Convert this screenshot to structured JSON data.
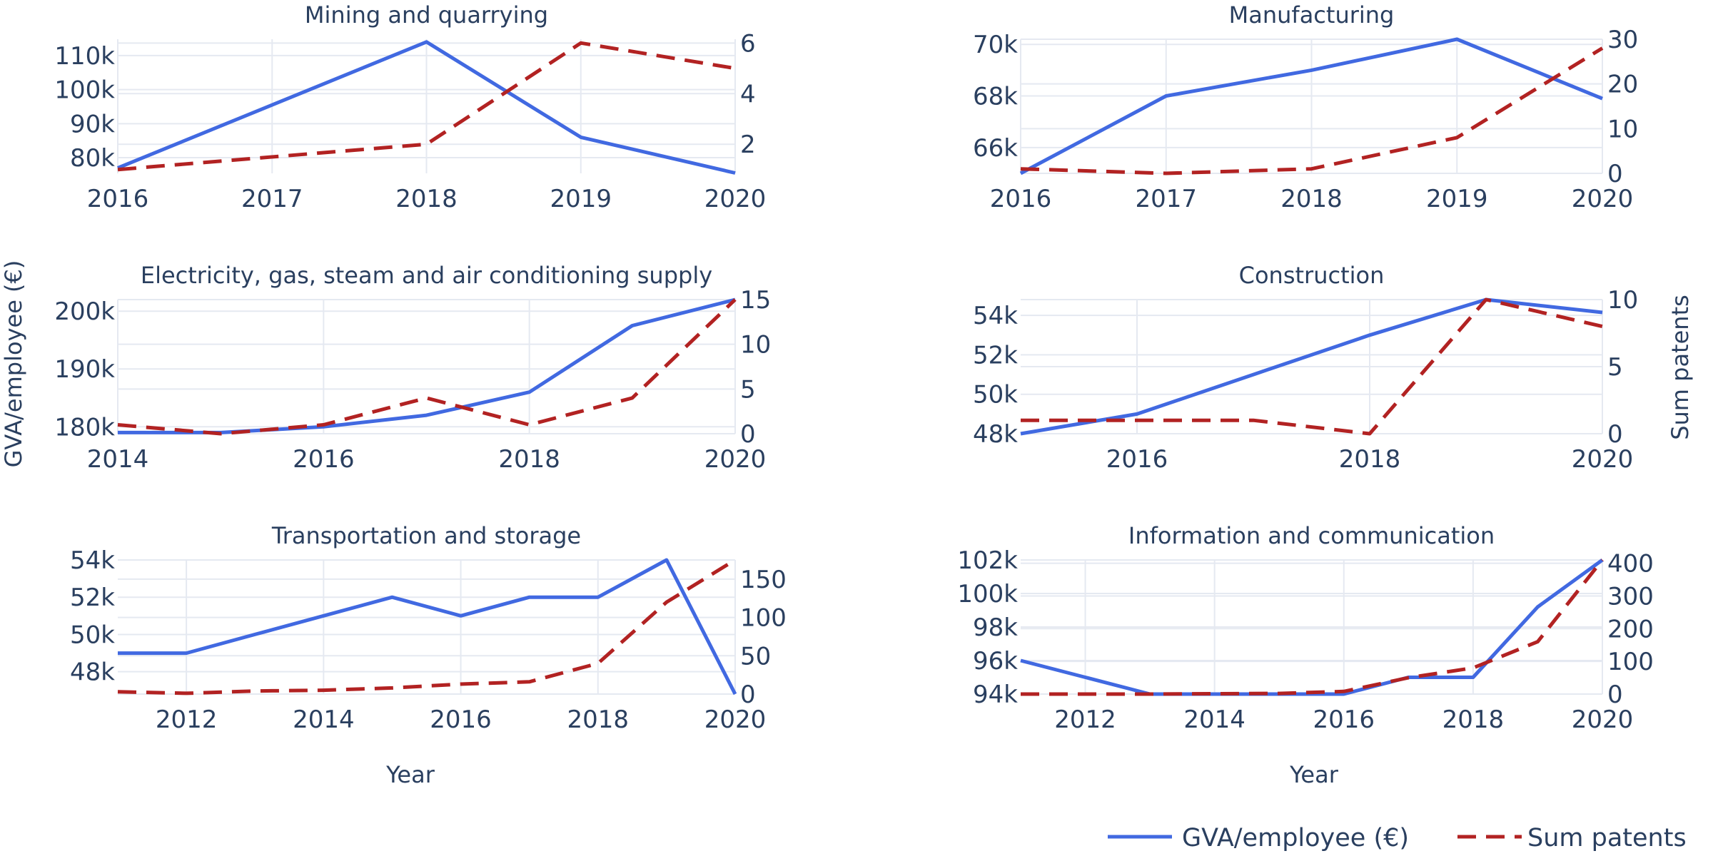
{
  "figure": {
    "left_axis_title": "GVA/employee (€)",
    "right_axis_title": "Sum patents",
    "x_axis_title": "Year",
    "legend": {
      "placement": "bottom-right",
      "items": [
        {
          "label": "GVA/employee (€)",
          "color": "#4169E1",
          "dash": "solid"
        },
        {
          "label": "Sum patents",
          "color": "#B22222",
          "dash": "dash"
        }
      ]
    },
    "colors": {
      "gva": "#4169E1",
      "patents": "#B22222",
      "grid": "#e5e9f1",
      "text": "#2a3f5f"
    }
  },
  "chart_data": [
    {
      "type": "line",
      "title": "Mining and quarrying",
      "xlabel": "",
      "x_range": [
        2016,
        2020
      ],
      "x_ticks": [
        2016,
        2017,
        2018,
        2019,
        2020
      ],
      "x_tick_labels": [
        "2016",
        "2017",
        "2018",
        "2019",
        "2020"
      ],
      "y_left_range": [
        75400,
        114800
      ],
      "y_left_ticks": [
        80000,
        90000,
        100000,
        110000
      ],
      "y_left_tick_labels": [
        "80k",
        "90k",
        "100k",
        "110k"
      ],
      "y_right_range": [
        0.85,
        6.15
      ],
      "y_right_ticks": [
        2,
        4,
        6
      ],
      "y_right_tick_labels": [
        "2",
        "4",
        "6"
      ],
      "series": [
        {
          "name": "GVA/employee (€)",
          "axis": "left",
          "x": [
            2016,
            2018,
            2019,
            2020
          ],
          "values": [
            77000,
            114000,
            86000,
            75500
          ]
        },
        {
          "name": "Sum patents",
          "axis": "right",
          "x": [
            2016,
            2018,
            2019,
            2020
          ],
          "values": [
            1,
            2,
            6,
            5
          ]
        }
      ]
    },
    {
      "type": "line",
      "title": "Manufacturing",
      "xlabel": "",
      "x_range": [
        2016,
        2020
      ],
      "x_ticks": [
        2016,
        2017,
        2018,
        2019,
        2020
      ],
      "x_tick_labels": [
        "2016",
        "2017",
        "2018",
        "2019",
        "2020"
      ],
      "y_left_range": [
        65000,
        70200
      ],
      "y_left_ticks": [
        66000,
        68000,
        70000
      ],
      "y_left_tick_labels": [
        "66k",
        "68k",
        "70k"
      ],
      "y_right_range": [
        0,
        30
      ],
      "y_right_ticks": [
        0,
        10,
        20,
        30
      ],
      "y_right_tick_labels": [
        "0",
        "10",
        "20",
        "30"
      ],
      "series": [
        {
          "name": "GVA/employee (€)",
          "axis": "left",
          "x": [
            2016,
            2017,
            2018,
            2019,
            2020
          ],
          "values": [
            65000,
            68000,
            69000,
            70200,
            67900
          ]
        },
        {
          "name": "Sum patents",
          "axis": "right",
          "x": [
            2016,
            2017,
            2018,
            2019,
            2020
          ],
          "values": [
            1,
            0,
            1,
            8,
            28
          ]
        }
      ]
    },
    {
      "type": "line",
      "title": "Electricity, gas, steam and air conditioning supply",
      "xlabel": "",
      "x_range": [
        2014,
        2020
      ],
      "x_ticks": [
        2014,
        2016,
        2018,
        2020
      ],
      "x_tick_labels": [
        "2014",
        "2016",
        "2018",
        "2020"
      ],
      "y_left_range": [
        178800,
        202000
      ],
      "y_left_ticks": [
        180000,
        190000,
        200000
      ],
      "y_left_tick_labels": [
        "180k",
        "190k",
        "200k"
      ],
      "y_right_range": [
        0,
        15
      ],
      "y_right_ticks": [
        0,
        5,
        10,
        15
      ],
      "y_right_tick_labels": [
        "0",
        "5",
        "10",
        "15"
      ],
      "series": [
        {
          "name": "GVA/employee (€)",
          "axis": "left",
          "x": [
            2014,
            2015,
            2016,
            2017,
            2018,
            2019,
            2020
          ],
          "values": [
            179000,
            179000,
            180000,
            182000,
            186000,
            197500,
            202000
          ]
        },
        {
          "name": "Sum patents",
          "axis": "right",
          "x": [
            2014,
            2015,
            2016,
            2017,
            2018,
            2019,
            2020
          ],
          "values": [
            1,
            0,
            1,
            4,
            1,
            4,
            15
          ]
        }
      ]
    },
    {
      "type": "line",
      "title": "Construction",
      "xlabel": "",
      "x_range": [
        2015,
        2020
      ],
      "x_ticks": [
        2016,
        2018,
        2020
      ],
      "x_tick_labels": [
        "2016",
        "2018",
        "2020"
      ],
      "y_left_range": [
        48000,
        54800
      ],
      "y_left_ticks": [
        48000,
        50000,
        52000,
        54000
      ],
      "y_left_tick_labels": [
        "48k",
        "50k",
        "52k",
        "54k"
      ],
      "y_right_range": [
        0,
        10
      ],
      "y_right_ticks": [
        0,
        5,
        10
      ],
      "y_right_tick_labels": [
        "0",
        "5",
        "10"
      ],
      "series": [
        {
          "name": "GVA/employee (€)",
          "axis": "left",
          "x": [
            2015,
            2016,
            2017,
            2018,
            2019,
            2020
          ],
          "values": [
            48000,
            49000,
            51000,
            53000,
            54800,
            54150
          ]
        },
        {
          "name": "Sum patents",
          "axis": "right",
          "x": [
            2015,
            2016,
            2017,
            2018,
            2019,
            2020
          ],
          "values": [
            1,
            1,
            1,
            0,
            10,
            8
          ]
        }
      ]
    },
    {
      "type": "line",
      "title": "Transportation and storage",
      "xlabel": "Year",
      "x_range": [
        2011,
        2020
      ],
      "x_ticks": [
        2012,
        2014,
        2016,
        2018,
        2020
      ],
      "x_tick_labels": [
        "2012",
        "2014",
        "2016",
        "2018",
        "2020"
      ],
      "y_left_range": [
        46800,
        54000
      ],
      "y_left_ticks": [
        48000,
        50000,
        52000,
        54000
      ],
      "y_left_tick_labels": [
        "48k",
        "50k",
        "52k",
        "54k"
      ],
      "y_right_range": [
        0,
        175
      ],
      "y_right_ticks": [
        0,
        50,
        100,
        150
      ],
      "y_right_tick_labels": [
        "0",
        "50",
        "100",
        "150"
      ],
      "series": [
        {
          "name": "GVA/employee (€)",
          "axis": "left",
          "x": [
            2011,
            2012,
            2013,
            2014,
            2015,
            2016,
            2017,
            2018,
            2019,
            2020
          ],
          "values": [
            49000,
            49000,
            50000,
            51000,
            52000,
            51000,
            52000,
            52000,
            54000,
            46800
          ]
        },
        {
          "name": "Sum patents",
          "axis": "right",
          "x": [
            2011,
            2012,
            2013,
            2014,
            2015,
            2016,
            2017,
            2018,
            2019,
            2020
          ],
          "values": [
            3,
            1,
            4,
            5,
            8,
            13,
            16,
            40,
            120,
            175
          ]
        }
      ]
    },
    {
      "type": "line",
      "title": "Information and communication",
      "xlabel": "Year",
      "x_range": [
        2011,
        2020
      ],
      "x_ticks": [
        2012,
        2014,
        2016,
        2018,
        2020
      ],
      "x_tick_labels": [
        "2012",
        "2014",
        "2016",
        "2018",
        "2020"
      ],
      "y_left_range": [
        94000,
        102000
      ],
      "y_left_ticks": [
        94000,
        96000,
        98000,
        100000,
        102000
      ],
      "y_left_tick_labels": [
        "94k",
        "96k",
        "98k",
        "100k",
        "102k"
      ],
      "y_right_range": [
        0,
        410
      ],
      "y_right_ticks": [
        0,
        100,
        200,
        300,
        400
      ],
      "y_right_tick_labels": [
        "0",
        "100",
        "200",
        "300",
        "400"
      ],
      "series": [
        {
          "name": "GVA/employee (€)",
          "axis": "left",
          "x": [
            2011,
            2012,
            2013,
            2014,
            2015,
            2016,
            2017,
            2018,
            2019,
            2020
          ],
          "values": [
            96000,
            95000,
            94000,
            94000,
            94000,
            94000,
            95000,
            95000,
            99200,
            102000
          ]
        },
        {
          "name": "Sum patents",
          "axis": "right",
          "x": [
            2011,
            2012,
            2013,
            2014,
            2015,
            2016,
            2017,
            2018,
            2019,
            2020
          ],
          "values": [
            0,
            0,
            0,
            1,
            2,
            8,
            50,
            80,
            160,
            410
          ]
        }
      ]
    }
  ]
}
